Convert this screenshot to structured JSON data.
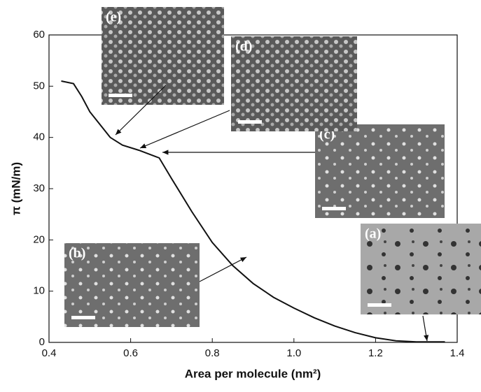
{
  "chart_data": {
    "type": "line",
    "x_label": "Area per molecule (nm²)",
    "y_label": "π (mN/m)",
    "series": [
      {
        "color": "#111111",
        "x": [
          0.43,
          0.46,
          0.48,
          0.5,
          0.52,
          0.55,
          0.58,
          0.62,
          0.66,
          0.67,
          0.7,
          0.75,
          0.8,
          0.85,
          0.9,
          0.95,
          1.0,
          1.05,
          1.1,
          1.15,
          1.2,
          1.25,
          1.3,
          1.37
        ],
        "values": [
          51,
          50.5,
          48,
          45,
          43,
          40,
          38.5,
          37.5,
          36.3,
          36,
          32,
          25.5,
          19.5,
          15,
          11.5,
          8.8,
          6.7,
          4.8,
          3.2,
          1.9,
          0.9,
          0.3,
          0.1,
          0.1
        ]
      }
    ],
    "xlim": [
      0.4,
      1.4
    ],
    "xticks": [
      0.4,
      0.6,
      0.8,
      {
        "value": 1,
        "label": "1.0"
      },
      1.2,
      1.4
    ],
    "ylim": [
      0,
      60
    ],
    "yticks": [
      0,
      10,
      20,
      30,
      40,
      50,
      60
    ],
    "insets": [
      {
        "label": "(a)"
      },
      {
        "label": "(b)"
      },
      {
        "label": "(c)"
      },
      {
        "label": "(d)"
      },
      {
        "label": "(e)"
      }
    ]
  }
}
